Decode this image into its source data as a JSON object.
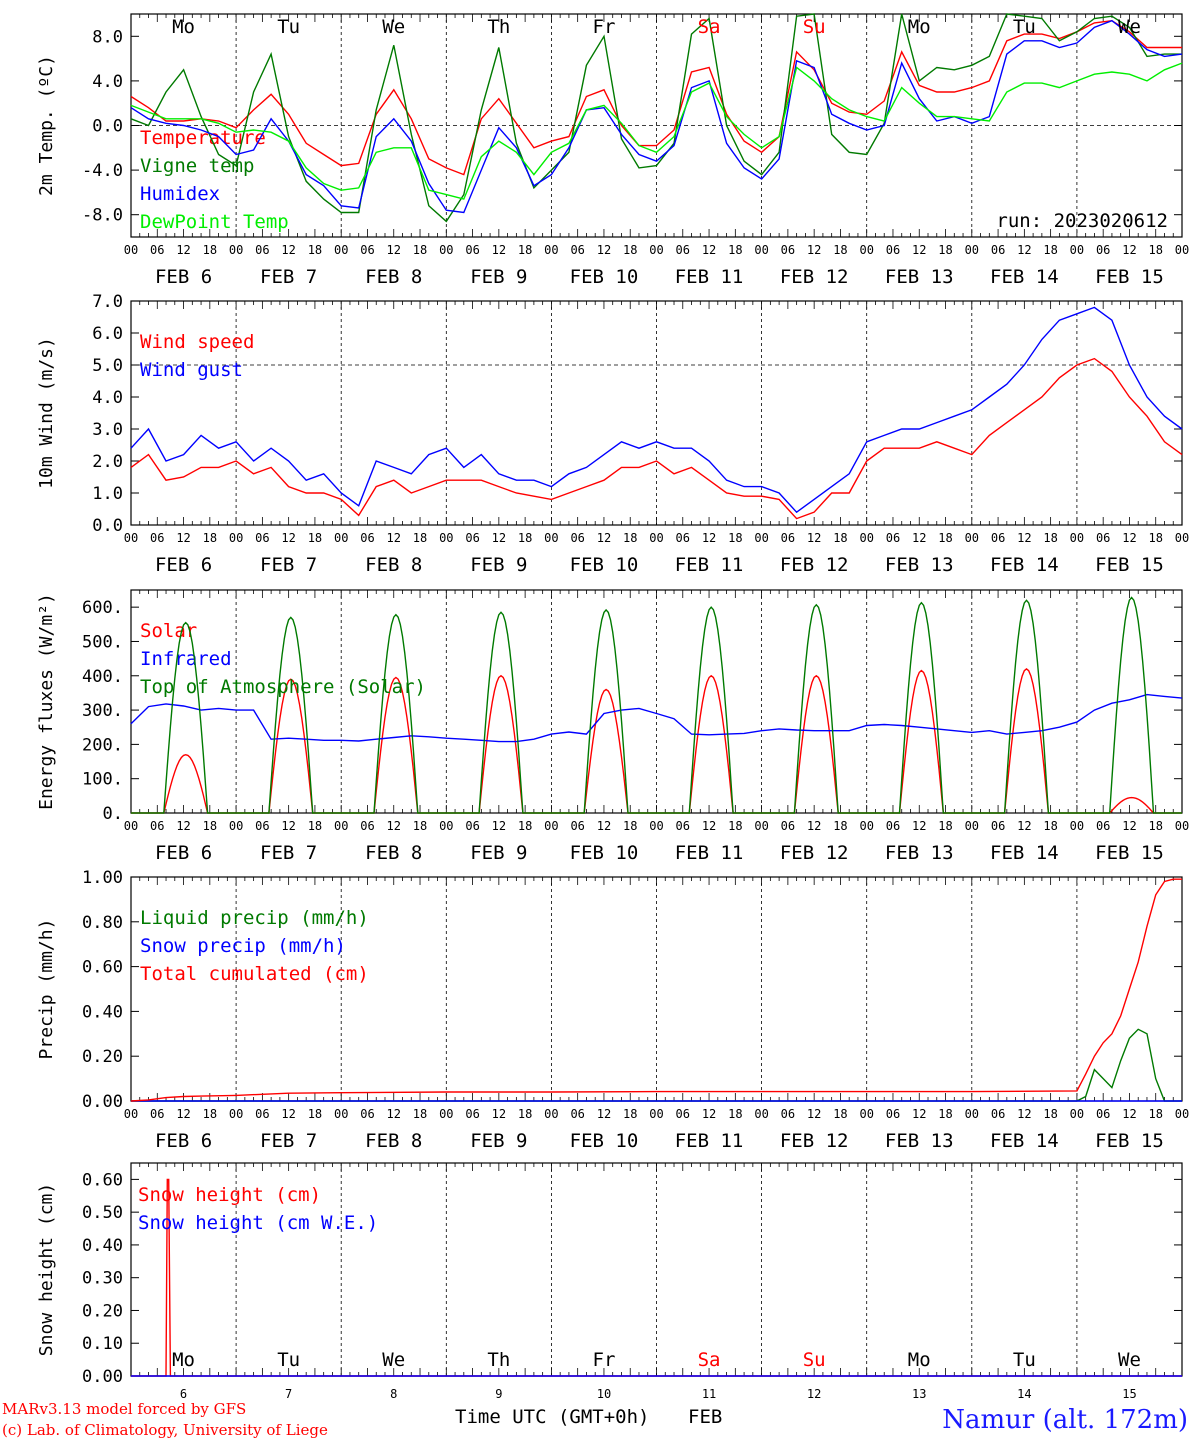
{
  "run_label": "run: 2023020612",
  "footer": {
    "model_line": "MARv3.13 model forced by GFS",
    "credit_line": "(c) Lab. of Climatology, University of Liege",
    "xlabel": "Time UTC (GMT+0h)",
    "xunit": "FEB",
    "station": "Namur (alt. 172m)"
  },
  "hour_ticks": [
    "00",
    "06",
    "12",
    "18"
  ],
  "final_tick": "00",
  "date_labels": [
    "FEB  6",
    "FEB  7",
    "FEB  8",
    "FEB  9",
    "FEB 10",
    "FEB 11",
    "FEB 12",
    "FEB 13",
    "FEB 14",
    "FEB 15"
  ],
  "day_names": [
    "Mo",
    "Tu",
    "We",
    "Th",
    "Fr",
    "Sa",
    "Su",
    "Mo",
    "Tu",
    "We"
  ],
  "day_numbers": [
    "6",
    "7",
    "8",
    "9",
    "10",
    "11",
    "12",
    "13",
    "14",
    "15"
  ],
  "colors": {
    "weekday": "#000000",
    "weekend": "#ff0000",
    "red": "#ff0000",
    "green": "#007a00",
    "blue": "#0000ff",
    "lightgreen": "#00ee00",
    "purple": "#8800aa"
  },
  "chart_data": [
    {
      "type": "line",
      "ylabel": "2m Temp. (ºC)",
      "ylim": [
        -10,
        10
      ],
      "yticks": [
        8,
        4,
        0,
        -4,
        -8
      ],
      "ytick_labels": [
        "8.0",
        "4.0",
        "0.0",
        "-4.0",
        "-8.0"
      ],
      "ref_line": 0,
      "x_hours": [
        0,
        4,
        8,
        12,
        16,
        20,
        24,
        28,
        32,
        36,
        40,
        44,
        48,
        52,
        56,
        60,
        64,
        68,
        72,
        76,
        80,
        84,
        88,
        92,
        96,
        100,
        104,
        108,
        112,
        116,
        120,
        124,
        128,
        132,
        136,
        140,
        144,
        148,
        152,
        156,
        160,
        164,
        168,
        172,
        176,
        180,
        184,
        188,
        192,
        196,
        200,
        204,
        208,
        212,
        216,
        220,
        224,
        228,
        232,
        236,
        240
      ],
      "series": [
        {
          "name": "Temperature",
          "color": "#ff0000",
          "values": [
            2.6,
            1.6,
            0.4,
            0.4,
            0.6,
            0.4,
            -0.2,
            1.4,
            2.8,
            1.0,
            -1.6,
            -2.6,
            -3.6,
            -3.4,
            1.0,
            3.2,
            0.6,
            -3.0,
            -3.8,
            -4.4,
            0.6,
            2.4,
            0.2,
            -2.0,
            -1.4,
            -1.0,
            2.6,
            3.2,
            0.0,
            -1.8,
            -1.8,
            -0.4,
            4.8,
            5.2,
            1.0,
            -1.4,
            -2.4,
            -1.0,
            6.6,
            5.0,
            2.0,
            1.2,
            1.0,
            2.2,
            6.6,
            3.6,
            3.0,
            3.0,
            3.4,
            4.0,
            7.6,
            8.2,
            8.2,
            7.8,
            8.4,
            9.2,
            9.4,
            8.4,
            7.0,
            7.0,
            7.0
          ]
        },
        {
          "name": "Vigne temp",
          "color": "#007a00",
          "values": [
            0.6,
            0.0,
            3.0,
            5.0,
            0.8,
            -2.6,
            -3.6,
            3.0,
            6.4,
            -1.0,
            -5.0,
            -6.6,
            -7.8,
            -7.8,
            1.4,
            7.2,
            -0.8,
            -7.2,
            -8.6,
            -6.2,
            1.4,
            7.0,
            -1.6,
            -5.6,
            -4.0,
            -2.4,
            5.4,
            8.0,
            -1.2,
            -3.8,
            -3.6,
            -1.6,
            8.2,
            9.6,
            0.0,
            -3.2,
            -4.4,
            -2.4,
            9.8,
            10.0,
            -0.8,
            -2.4,
            -2.6,
            0.2,
            10.0,
            4.0,
            5.2,
            5.0,
            5.4,
            6.2,
            10.0,
            9.8,
            9.6,
            7.6,
            8.4,
            9.6,
            9.8,
            8.8,
            6.2,
            6.4,
            6.4
          ]
        },
        {
          "name": "Humidex",
          "color": "#0000ff",
          "values": [
            1.6,
            0.6,
            0.2,
            0.0,
            -0.4,
            -1.0,
            -2.6,
            -2.2,
            0.6,
            -1.4,
            -4.4,
            -5.4,
            -7.2,
            -7.4,
            -1.0,
            0.6,
            -1.4,
            -5.2,
            -7.6,
            -7.8,
            -4.0,
            -0.2,
            -2.0,
            -5.4,
            -4.4,
            -2.0,
            1.4,
            1.6,
            -0.8,
            -2.6,
            -3.2,
            -1.8,
            3.4,
            4.0,
            -1.6,
            -3.8,
            -4.8,
            -3.0,
            5.8,
            5.2,
            1.0,
            0.2,
            -0.4,
            0.0,
            5.6,
            2.4,
            0.4,
            0.8,
            0.2,
            0.8,
            6.4,
            7.6,
            7.6,
            7.0,
            7.4,
            8.8,
            9.4,
            8.2,
            6.8,
            6.2,
            6.4
          ]
        },
        {
          "name": "DewPoint Temp",
          "color": "#00ee00",
          "values": [
            1.8,
            1.2,
            0.6,
            0.6,
            0.6,
            0.2,
            -0.6,
            -0.4,
            -0.6,
            -1.4,
            -3.8,
            -5.2,
            -5.8,
            -5.6,
            -2.4,
            -2.0,
            -2.0,
            -5.8,
            -6.2,
            -6.6,
            -2.8,
            -1.4,
            -2.4,
            -4.4,
            -2.4,
            -1.6,
            1.4,
            1.8,
            0.2,
            -1.8,
            -2.4,
            -1.0,
            3.0,
            3.8,
            0.8,
            -0.8,
            -2.0,
            -1.0,
            5.2,
            4.0,
            2.4,
            1.4,
            0.8,
            0.4,
            3.4,
            2.0,
            0.8,
            0.8,
            0.6,
            0.4,
            3.0,
            3.8,
            3.8,
            3.4,
            4.0,
            4.6,
            4.8,
            4.6,
            4.0,
            5.0,
            5.6
          ]
        }
      ]
    },
    {
      "type": "line",
      "ylabel": "10m Wind (m/s)",
      "ylim": [
        0,
        7
      ],
      "yticks": [
        7,
        6,
        5,
        4,
        3,
        2,
        1,
        0
      ],
      "ytick_labels": [
        "7.0",
        "6.0",
        "5.0",
        "4.0",
        "3.0",
        "2.0",
        "1.0",
        "0.0"
      ],
      "ref_line": 5,
      "x_hours": [
        0,
        4,
        8,
        12,
        16,
        20,
        24,
        28,
        32,
        36,
        40,
        44,
        48,
        52,
        56,
        60,
        64,
        68,
        72,
        76,
        80,
        84,
        88,
        92,
        96,
        100,
        104,
        108,
        112,
        116,
        120,
        124,
        128,
        132,
        136,
        140,
        144,
        148,
        152,
        156,
        160,
        164,
        168,
        172,
        176,
        180,
        184,
        188,
        192,
        196,
        200,
        204,
        208,
        212,
        216,
        220,
        224,
        228,
        232,
        236,
        240
      ],
      "series": [
        {
          "name": "Wind speed",
          "color": "#ff0000",
          "values": [
            1.8,
            2.2,
            1.4,
            1.5,
            1.8,
            1.8,
            2.0,
            1.6,
            1.8,
            1.2,
            1.0,
            1.0,
            0.8,
            0.3,
            1.2,
            1.4,
            1.0,
            1.2,
            1.4,
            1.4,
            1.4,
            1.2,
            1.0,
            0.9,
            0.8,
            1.0,
            1.2,
            1.4,
            1.8,
            1.8,
            2.0,
            1.6,
            1.8,
            1.4,
            1.0,
            0.9,
            0.9,
            0.8,
            0.2,
            0.4,
            1.0,
            1.0,
            2.0,
            2.4,
            2.4,
            2.4,
            2.6,
            2.4,
            2.2,
            2.8,
            3.2,
            3.6,
            4.0,
            4.6,
            5.0,
            5.2,
            4.8,
            4.0,
            3.4,
            2.6,
            2.2
          ]
        },
        {
          "name": "Wind gust",
          "color": "#0000ff",
          "values": [
            2.4,
            3.0,
            2.0,
            2.2,
            2.8,
            2.4,
            2.6,
            2.0,
            2.4,
            2.0,
            1.4,
            1.6,
            1.0,
            0.6,
            2.0,
            1.8,
            1.6,
            2.2,
            2.4,
            1.8,
            2.2,
            1.6,
            1.4,
            1.4,
            1.2,
            1.6,
            1.8,
            2.2,
            2.6,
            2.4,
            2.6,
            2.4,
            2.4,
            2.0,
            1.4,
            1.2,
            1.2,
            1.0,
            0.4,
            0.8,
            1.2,
            1.6,
            2.6,
            2.8,
            3.0,
            3.0,
            3.2,
            3.4,
            3.6,
            4.0,
            4.4,
            5.0,
            5.8,
            6.4,
            6.6,
            6.8,
            6.4,
            5.0,
            4.0,
            3.4,
            3.0
          ]
        }
      ]
    },
    {
      "type": "line",
      "ylabel": "Energy fluxes (W/m²)",
      "ylim": [
        0,
        650
      ],
      "yticks": [
        600,
        500,
        400,
        300,
        200,
        100,
        0
      ],
      "ytick_labels": [
        "600.",
        "500.",
        "400.",
        "300.",
        "200.",
        "100.",
        "0."
      ],
      "daylight": {
        "sunrise_h": 7.5,
        "sunset_h": 17.5
      },
      "series": [
        {
          "name": "Solar",
          "color": "#ff0000",
          "daily_peaks": [
            170,
            390,
            395,
            400,
            360,
            400,
            400,
            415,
            420,
            45
          ]
        },
        {
          "name": "Infrared",
          "color": "#0000ff",
          "x_hours": [
            0,
            4,
            8,
            12,
            16,
            20,
            24,
            28,
            32,
            36,
            40,
            44,
            48,
            52,
            56,
            60,
            64,
            68,
            72,
            76,
            80,
            84,
            88,
            92,
            96,
            100,
            104,
            108,
            112,
            116,
            120,
            124,
            128,
            132,
            136,
            140,
            144,
            148,
            152,
            156,
            160,
            164,
            168,
            172,
            176,
            180,
            184,
            188,
            192,
            196,
            200,
            204,
            208,
            212,
            216,
            220,
            224,
            228,
            232,
            236,
            240
          ],
          "values": [
            260,
            310,
            318,
            312,
            300,
            305,
            300,
            300,
            215,
            218,
            215,
            212,
            212,
            210,
            215,
            220,
            225,
            222,
            218,
            215,
            212,
            208,
            208,
            215,
            230,
            236,
            230,
            290,
            300,
            305,
            290,
            275,
            230,
            228,
            230,
            232,
            240,
            245,
            242,
            240,
            240,
            240,
            255,
            258,
            255,
            250,
            245,
            240,
            235,
            240,
            230,
            235,
            240,
            250,
            265,
            300,
            320,
            330,
            345,
            340,
            335
          ]
        },
        {
          "name": "Top of Atmosphere (Solar)",
          "color": "#007a00",
          "daily_peaks": [
            555,
            570,
            578,
            585,
            592,
            600,
            607,
            613,
            620,
            628
          ]
        }
      ]
    },
    {
      "type": "line",
      "ylabel": "Precip (mm/h)",
      "ylim": [
        0,
        1.0
      ],
      "yticks": [
        1.0,
        0.8,
        0.6,
        0.4,
        0.2,
        0.0
      ],
      "ytick_labels": [
        "1.00",
        "0.80",
        "0.60",
        "0.40",
        "0.20",
        "0.00"
      ],
      "series": [
        {
          "name": "Liquid precip (mm/h)",
          "color": "#007a00",
          "x_hours": [
            0,
            24,
            48,
            72,
            96,
            120,
            144,
            168,
            192,
            216,
            218,
            220,
            222,
            224,
            226,
            228,
            230,
            232,
            234,
            236,
            240
          ],
          "values": [
            0,
            0,
            0,
            0,
            0,
            0,
            0,
            0,
            0,
            0,
            0.02,
            0.14,
            0.1,
            0.06,
            0.18,
            0.28,
            0.32,
            0.3,
            0.1,
            0.0,
            0.0
          ]
        },
        {
          "name": "Snow precip (mm/h)",
          "color": "#0000ff",
          "x_hours": [
            0,
            240
          ],
          "values": [
            0,
            0
          ]
        },
        {
          "name": "Total cumulated (cm)",
          "color": "#ff0000",
          "x_hours": [
            0,
            4,
            8,
            12,
            16,
            24,
            30,
            36,
            48,
            72,
            96,
            120,
            144,
            168,
            192,
            216,
            218,
            220,
            222,
            224,
            226,
            228,
            230,
            232,
            234,
            236,
            238,
            240
          ],
          "values": [
            0.0,
            0.005,
            0.015,
            0.02,
            0.022,
            0.025,
            0.03,
            0.035,
            0.037,
            0.04,
            0.04,
            0.042,
            0.042,
            0.042,
            0.042,
            0.045,
            0.12,
            0.2,
            0.26,
            0.3,
            0.38,
            0.5,
            0.62,
            0.78,
            0.92,
            0.98,
            0.99,
            0.99
          ]
        }
      ]
    },
    {
      "type": "line",
      "ylabel": "Snow height (cm)",
      "ylim": [
        0,
        0.65
      ],
      "yticks": [
        0.6,
        0.5,
        0.4,
        0.3,
        0.2,
        0.1,
        0.0
      ],
      "ytick_labels": [
        "0.60",
        "0.50",
        "0.40",
        "0.30",
        "0.20",
        "0.10",
        "0.00"
      ],
      "series": [
        {
          "name": "Snow height (cm)",
          "color": "#ff0000",
          "x_hours": [
            0,
            8,
            8.3,
            8.6,
            9,
            240
          ],
          "values": [
            0,
            0,
            0.6,
            0.6,
            0,
            0
          ]
        },
        {
          "name": "Snow height (cm W.E.)",
          "color": "#0000ff",
          "x_hours": [
            0,
            240
          ],
          "values": [
            0,
            0
          ]
        }
      ]
    }
  ]
}
